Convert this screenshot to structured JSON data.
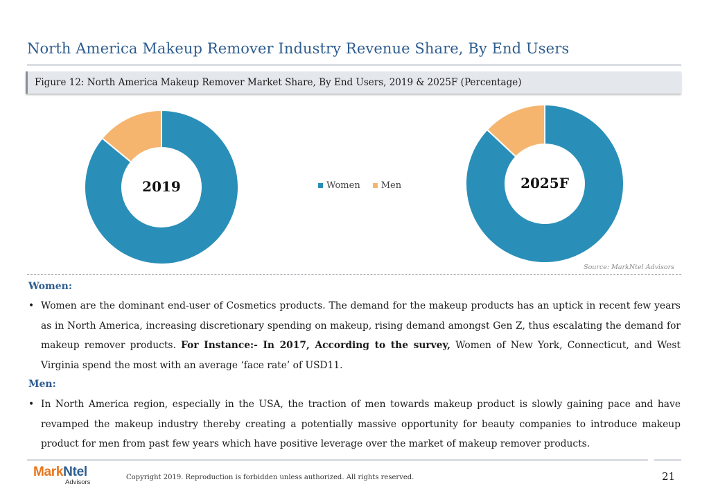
{
  "page": {
    "title": "North America Makeup Remover Industry Revenue Share, By End Users",
    "figure_caption": "Figure 12: North America Makeup Remover Market Share, By End Users, 2019 & 2025F (Percentage)",
    "source": "Source: MarkNtel Advisors"
  },
  "chart_data": [
    {
      "type": "pie",
      "variant": "donut",
      "center_label": "2019",
      "categories": [
        "Women",
        "Men"
      ],
      "values": [
        86,
        14
      ],
      "colors": [
        "#2a8fb8",
        "#f5b56e"
      ],
      "legend_placement": "center-between-charts"
    },
    {
      "type": "pie",
      "variant": "donut",
      "center_label": "2025F",
      "categories": [
        "Women",
        "Men"
      ],
      "values": [
        87,
        13
      ],
      "colors": [
        "#2a8fb8",
        "#f5b56e"
      ],
      "legend_placement": "center-between-charts"
    }
  ],
  "legend": {
    "items": [
      {
        "label": "Women",
        "color": "#2a8fb8"
      },
      {
        "label": "Men",
        "color": "#f5b56e"
      }
    ]
  },
  "women": {
    "heading": "Women:",
    "text_start": "Women are the dominant end-user of Cosmetics products. The demand for the makeup products has an uptick in recent few years as in North America, increasing discretionary spending on makeup, rising demand amongst Gen Z, thus escalating the demand for makeup remover products.",
    "text_bold": "For Instance:- In 2017, According to the survey,",
    "text_end": "Women of  New York, Connecticut, and West Virginia spend the most with an average ‘face rate’ of USD11."
  },
  "men": {
    "heading": "Men:",
    "text": "In North America region, especially in the USA, the traction of men towards makeup product is slowly gaining pace and have revamped the makeup industry thereby creating a potentially massive opportunity for beauty companies to introduce makeup product for men from past few years which have positive leverage over the market of makeup remover products."
  },
  "footer": {
    "logo_part1": "Mark",
    "logo_part2": "Ntel",
    "logo_sub": "Advisors",
    "copyright": "Copyright 2019. Reproduction is forbidden unless authorized. All rights reserved.",
    "page_number": "21"
  },
  "colors": {
    "title": "#2e5d8f",
    "women": "#2a8fb8",
    "men": "#f5b56e"
  }
}
